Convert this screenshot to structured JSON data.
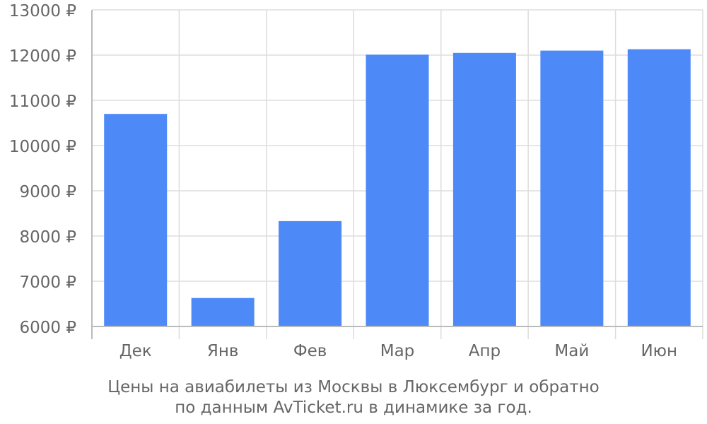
{
  "chart_data": {
    "type": "bar",
    "categories": [
      "Дек",
      "Янв",
      "Фев",
      "Мар",
      "Апр",
      "Май",
      "Июн"
    ],
    "values": [
      10700,
      6630,
      8330,
      12010,
      12050,
      12100,
      12130
    ],
    "ylim": [
      6000,
      13000
    ],
    "yticks": [
      6000,
      7000,
      8000,
      9000,
      10000,
      11000,
      12000,
      13000
    ],
    "ytick_suffix": " ₽",
    "grid": true,
    "bar_color": "#4d8af8",
    "caption_line1": "Цены на авиабилеты из Москвы в Люксембург и обратно",
    "caption_line2": "по данным AvTicket.ru в динамике за год."
  }
}
